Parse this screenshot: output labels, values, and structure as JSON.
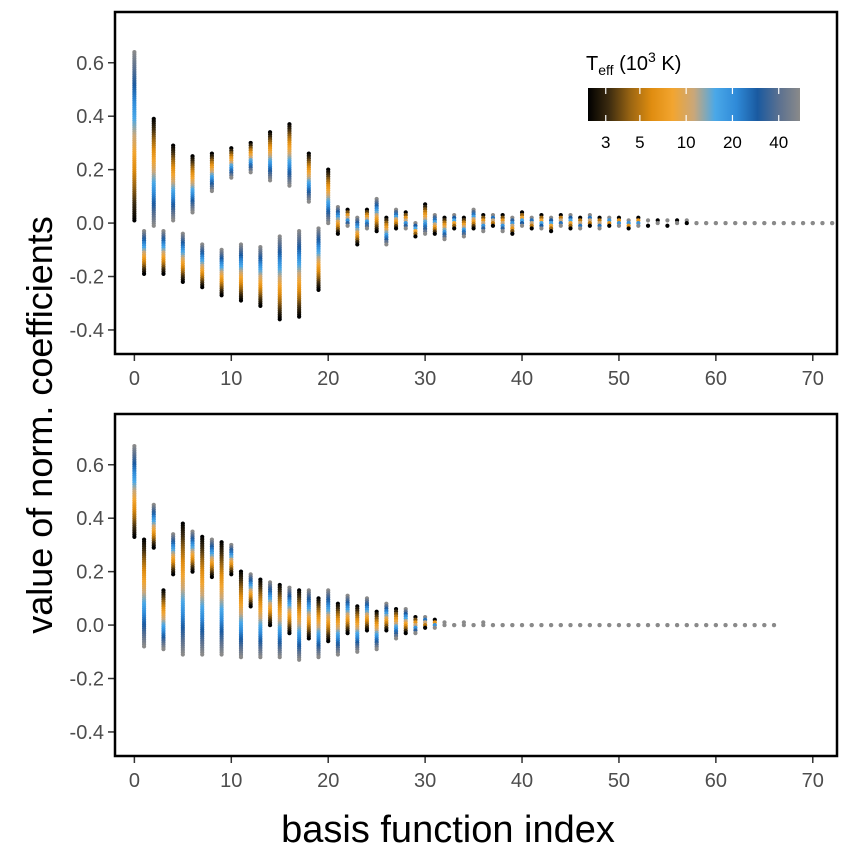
{
  "ylabel": "value of norm. coefficients",
  "xlabel": "basis function index",
  "legend": {
    "title_main": "T",
    "title_sub": "eff",
    "title_rest_a": " (10",
    "title_sup": "3",
    "title_rest_b": " K)",
    "ticks": [
      {
        "label": "3",
        "value": 3
      },
      {
        "label": "5",
        "value": 5
      },
      {
        "label": "10",
        "value": 10
      },
      {
        "label": "20",
        "value": 20
      },
      {
        "label": "40",
        "value": 40
      }
    ],
    "range": [
      2.3,
      55
    ],
    "scale": "log",
    "placement": "top-right",
    "colors": [
      "#000000",
      "#3d2c10",
      "#9a6512",
      "#e08d10",
      "#f2a530",
      "#c9a77a",
      "#4aa8e8",
      "#2f8ad8",
      "#1a5aa0",
      "#5a7090",
      "#8a8a8a"
    ]
  },
  "chart_data": [
    {
      "type": "scatter",
      "panel": "top",
      "xlabel": "basis function index",
      "ylabel": "value of norm. coefficients",
      "xlim": [
        -2,
        72.5
      ],
      "ylim": [
        -0.49,
        0.79
      ],
      "xticks": [
        0,
        10,
        20,
        30,
        40,
        50,
        60,
        70
      ],
      "yticks": [
        -0.4,
        -0.2,
        0.0,
        0.2,
        0.4,
        0.6
      ],
      "ytick_labels": [
        "-0.4",
        "-0.2",
        "0.0",
        "0.2",
        "0.4",
        "0.6"
      ],
      "grid": false,
      "columns": [
        {
          "x": 0,
          "min": 0.01,
          "max": 0.64,
          "order": "cool_high"
        },
        {
          "x": 1,
          "min": -0.19,
          "max": -0.03,
          "order": "cool_high"
        },
        {
          "x": 2,
          "min": -0.01,
          "max": 0.39,
          "order": "cool_low"
        },
        {
          "x": 3,
          "min": -0.19,
          "max": -0.03,
          "order": "cool_high"
        },
        {
          "x": 4,
          "min": 0.01,
          "max": 0.29,
          "order": "cool_low"
        },
        {
          "x": 5,
          "min": -0.22,
          "max": -0.04,
          "order": "cool_high"
        },
        {
          "x": 6,
          "min": 0.04,
          "max": 0.25,
          "order": "cool_low"
        },
        {
          "x": 7,
          "min": -0.24,
          "max": -0.08,
          "order": "cool_high"
        },
        {
          "x": 8,
          "min": 0.12,
          "max": 0.26,
          "order": "cool_low"
        },
        {
          "x": 9,
          "min": -0.27,
          "max": -0.1,
          "order": "cool_high"
        },
        {
          "x": 10,
          "min": 0.17,
          "max": 0.28,
          "order": "cool_low"
        },
        {
          "x": 11,
          "min": -0.29,
          "max": -0.08,
          "order": "cool_high"
        },
        {
          "x": 12,
          "min": 0.19,
          "max": 0.3,
          "order": "cool_low"
        },
        {
          "x": 13,
          "min": -0.31,
          "max": -0.09,
          "order": "cool_high"
        },
        {
          "x": 14,
          "min": 0.16,
          "max": 0.34,
          "order": "cool_low"
        },
        {
          "x": 15,
          "min": -0.36,
          "max": -0.05,
          "order": "cool_high"
        },
        {
          "x": 16,
          "min": 0.14,
          "max": 0.37,
          "order": "cool_low"
        },
        {
          "x": 17,
          "min": -0.35,
          "max": -0.03,
          "order": "cool_high"
        },
        {
          "x": 18,
          "min": 0.08,
          "max": 0.26,
          "order": "cool_low"
        },
        {
          "x": 19,
          "min": -0.25,
          "max": -0.02,
          "order": "cool_high"
        },
        {
          "x": 20,
          "min": 0.0,
          "max": 0.2,
          "order": "cool_low"
        },
        {
          "x": 21,
          "min": -0.04,
          "max": 0.06,
          "order": "cool_high"
        },
        {
          "x": 22,
          "min": -0.01,
          "max": 0.05,
          "order": "cool_low"
        },
        {
          "x": 23,
          "min": -0.08,
          "max": 0.02,
          "order": "cool_high"
        },
        {
          "x": 24,
          "min": -0.02,
          "max": 0.05,
          "order": "cool_low"
        },
        {
          "x": 25,
          "min": -0.03,
          "max": 0.09,
          "order": "cool_high"
        },
        {
          "x": 26,
          "min": -0.08,
          "max": 0.02,
          "order": "cool_low"
        },
        {
          "x": 27,
          "min": -0.02,
          "max": 0.05,
          "order": "cool_high"
        },
        {
          "x": 28,
          "min": -0.02,
          "max": 0.04,
          "order": "cool_low"
        },
        {
          "x": 29,
          "min": -0.05,
          "max": 0.0,
          "order": "cool_high"
        },
        {
          "x": 30,
          "min": -0.04,
          "max": 0.07,
          "order": "cool_low"
        },
        {
          "x": 31,
          "min": -0.04,
          "max": 0.03,
          "order": "cool_high"
        },
        {
          "x": 32,
          "min": -0.06,
          "max": 0.02,
          "order": "cool_low"
        },
        {
          "x": 33,
          "min": -0.02,
          "max": 0.03,
          "order": "cool_high"
        },
        {
          "x": 34,
          "min": -0.05,
          "max": 0.02,
          "order": "cool_low"
        },
        {
          "x": 35,
          "min": -0.02,
          "max": 0.05,
          "order": "cool_high"
        },
        {
          "x": 36,
          "min": -0.03,
          "max": 0.03,
          "order": "cool_low"
        },
        {
          "x": 37,
          "min": -0.01,
          "max": 0.03,
          "order": "cool_high"
        },
        {
          "x": 38,
          "min": -0.03,
          "max": 0.03,
          "order": "cool_low"
        },
        {
          "x": 39,
          "min": -0.04,
          "max": 0.02,
          "order": "cool_high"
        },
        {
          "x": 40,
          "min": -0.01,
          "max": 0.04,
          "order": "cool_low"
        },
        {
          "x": 41,
          "min": -0.02,
          "max": 0.02,
          "order": "cool_high"
        },
        {
          "x": 42,
          "min": -0.02,
          "max": 0.03,
          "order": "cool_low"
        },
        {
          "x": 43,
          "min": -0.03,
          "max": 0.02,
          "order": "cool_high"
        },
        {
          "x": 44,
          "min": -0.01,
          "max": 0.03,
          "order": "cool_low"
        },
        {
          "x": 45,
          "min": -0.02,
          "max": 0.03,
          "order": "cool_high"
        },
        {
          "x": 46,
          "min": -0.02,
          "max": 0.02,
          "order": "cool_low"
        },
        {
          "x": 47,
          "min": -0.01,
          "max": 0.03,
          "order": "cool_high"
        },
        {
          "x": 48,
          "min": -0.02,
          "max": 0.02,
          "order": "cool_low"
        },
        {
          "x": 49,
          "min": -0.01,
          "max": 0.02,
          "order": "cool_high"
        },
        {
          "x": 50,
          "min": -0.01,
          "max": 0.02,
          "order": "cool_low"
        },
        {
          "x": 51,
          "min": -0.02,
          "max": 0.01,
          "order": "cool_high"
        },
        {
          "x": 52,
          "min": -0.01,
          "max": 0.02,
          "order": "cool_low"
        },
        {
          "x": 53,
          "min": -0.01,
          "max": 0.01,
          "order": "cool_high"
        },
        {
          "x": 54,
          "min": 0.0,
          "max": 0.01,
          "order": "cool_low"
        },
        {
          "x": 55,
          "min": -0.01,
          "max": 0.01,
          "order": "cool_high"
        },
        {
          "x": 56,
          "min": 0.0,
          "max": 0.01,
          "order": "cool_low"
        },
        {
          "x": 57,
          "min": 0.0,
          "max": 0.01,
          "order": "cool_high"
        },
        {
          "x": 58,
          "min": 0.0,
          "max": 0.0,
          "order": "flat"
        },
        {
          "x": 59,
          "min": 0.0,
          "max": 0.0,
          "order": "flat"
        },
        {
          "x": 60,
          "min": 0.0,
          "max": 0.0,
          "order": "flat"
        },
        {
          "x": 61,
          "min": 0.0,
          "max": 0.0,
          "order": "flat"
        },
        {
          "x": 62,
          "min": 0.0,
          "max": 0.0,
          "order": "flat"
        },
        {
          "x": 63,
          "min": 0.0,
          "max": 0.0,
          "order": "flat"
        },
        {
          "x": 64,
          "min": 0.0,
          "max": 0.0,
          "order": "flat"
        },
        {
          "x": 65,
          "min": 0.0,
          "max": 0.0,
          "order": "flat"
        },
        {
          "x": 66,
          "min": 0.0,
          "max": 0.0,
          "order": "flat"
        },
        {
          "x": 67,
          "min": 0.0,
          "max": 0.0,
          "order": "flat"
        },
        {
          "x": 68,
          "min": 0.0,
          "max": 0.0,
          "order": "flat"
        },
        {
          "x": 69,
          "min": 0.0,
          "max": 0.0,
          "order": "flat"
        },
        {
          "x": 70,
          "min": 0.0,
          "max": 0.0,
          "order": "flat"
        },
        {
          "x": 71,
          "min": 0.0,
          "max": 0.0,
          "order": "flat"
        },
        {
          "x": 72,
          "min": 0.0,
          "max": 0.0,
          "order": "flat"
        }
      ]
    },
    {
      "type": "scatter",
      "panel": "bottom",
      "xlabel": "basis function index",
      "ylabel": "value of norm. coefficients",
      "xlim": [
        -2,
        72.5
      ],
      "ylim": [
        -0.49,
        0.79
      ],
      "xticks": [
        0,
        10,
        20,
        30,
        40,
        50,
        60,
        70
      ],
      "yticks": [
        -0.4,
        -0.2,
        0.0,
        0.2,
        0.4,
        0.6
      ],
      "ytick_labels": [
        "-0.4",
        "-0.2",
        "0.0",
        "0.2",
        "0.4",
        "0.6"
      ],
      "grid": false,
      "columns": [
        {
          "x": 0,
          "min": 0.33,
          "max": 0.67,
          "order": "cool_high"
        },
        {
          "x": 1,
          "min": -0.08,
          "max": 0.32,
          "order": "cool_low"
        },
        {
          "x": 2,
          "min": 0.29,
          "max": 0.45,
          "order": "cool_high"
        },
        {
          "x": 3,
          "min": -0.09,
          "max": 0.13,
          "order": "cool_low"
        },
        {
          "x": 4,
          "min": 0.19,
          "max": 0.34,
          "order": "cool_high"
        },
        {
          "x": 5,
          "min": -0.11,
          "max": 0.38,
          "order": "cool_low"
        },
        {
          "x": 6,
          "min": 0.2,
          "max": 0.35,
          "order": "cool_high"
        },
        {
          "x": 7,
          "min": -0.11,
          "max": 0.33,
          "order": "cool_low"
        },
        {
          "x": 8,
          "min": 0.18,
          "max": 0.32,
          "order": "cool_high"
        },
        {
          "x": 9,
          "min": -0.11,
          "max": 0.31,
          "order": "cool_low"
        },
        {
          "x": 10,
          "min": 0.19,
          "max": 0.3,
          "order": "cool_high"
        },
        {
          "x": 11,
          "min": -0.12,
          "max": 0.2,
          "order": "cool_low"
        },
        {
          "x": 12,
          "min": 0.07,
          "max": 0.19,
          "order": "cool_high"
        },
        {
          "x": 13,
          "min": -0.12,
          "max": 0.17,
          "order": "cool_low"
        },
        {
          "x": 14,
          "min": 0.0,
          "max": 0.16,
          "order": "cool_high"
        },
        {
          "x": 15,
          "min": -0.12,
          "max": 0.15,
          "order": "cool_low"
        },
        {
          "x": 16,
          "min": -0.03,
          "max": 0.14,
          "order": "cool_high"
        },
        {
          "x": 17,
          "min": -0.13,
          "max": 0.13,
          "order": "cool_low"
        },
        {
          "x": 18,
          "min": -0.05,
          "max": 0.13,
          "order": "cool_high"
        },
        {
          "x": 19,
          "min": -0.12,
          "max": 0.1,
          "order": "cool_low"
        },
        {
          "x": 20,
          "min": -0.06,
          "max": 0.13,
          "order": "cool_high"
        },
        {
          "x": 21,
          "min": -0.11,
          "max": 0.08,
          "order": "cool_low"
        },
        {
          "x": 22,
          "min": -0.03,
          "max": 0.11,
          "order": "cool_high"
        },
        {
          "x": 23,
          "min": -0.1,
          "max": 0.07,
          "order": "cool_low"
        },
        {
          "x": 24,
          "min": -0.02,
          "max": 0.1,
          "order": "cool_high"
        },
        {
          "x": 25,
          "min": -0.09,
          "max": 0.05,
          "order": "cool_low"
        },
        {
          "x": 26,
          "min": -0.02,
          "max": 0.08,
          "order": "cool_high"
        },
        {
          "x": 27,
          "min": -0.05,
          "max": 0.06,
          "order": "cool_low"
        },
        {
          "x": 28,
          "min": -0.03,
          "max": 0.06,
          "order": "cool_high"
        },
        {
          "x": 29,
          "min": -0.03,
          "max": 0.03,
          "order": "cool_low"
        },
        {
          "x": 30,
          "min": -0.01,
          "max": 0.03,
          "order": "cool_high"
        },
        {
          "x": 31,
          "min": -0.01,
          "max": 0.02,
          "order": "cool_low"
        },
        {
          "x": 32,
          "min": 0.0,
          "max": 0.01,
          "order": "flat"
        },
        {
          "x": 33,
          "min": 0.0,
          "max": 0.0,
          "order": "flat"
        },
        {
          "x": 34,
          "min": 0.0,
          "max": 0.01,
          "order": "flat"
        },
        {
          "x": 35,
          "min": 0.0,
          "max": 0.0,
          "order": "flat"
        },
        {
          "x": 36,
          "min": 0.0,
          "max": 0.01,
          "order": "flat"
        },
        {
          "x": 37,
          "min": 0.0,
          "max": 0.0,
          "order": "flat"
        },
        {
          "x": 38,
          "min": 0.0,
          "max": 0.0,
          "order": "flat"
        },
        {
          "x": 39,
          "min": 0.0,
          "max": 0.0,
          "order": "flat"
        },
        {
          "x": 40,
          "min": 0.0,
          "max": 0.0,
          "order": "flat"
        },
        {
          "x": 41,
          "min": 0.0,
          "max": 0.0,
          "order": "flat"
        },
        {
          "x": 42,
          "min": 0.0,
          "max": 0.0,
          "order": "flat"
        },
        {
          "x": 43,
          "min": 0.0,
          "max": 0.0,
          "order": "flat"
        },
        {
          "x": 44,
          "min": 0.0,
          "max": 0.0,
          "order": "flat"
        },
        {
          "x": 45,
          "min": 0.0,
          "max": 0.0,
          "order": "flat"
        },
        {
          "x": 46,
          "min": 0.0,
          "max": 0.0,
          "order": "flat"
        },
        {
          "x": 47,
          "min": 0.0,
          "max": 0.0,
          "order": "flat"
        },
        {
          "x": 48,
          "min": 0.0,
          "max": 0.0,
          "order": "flat"
        },
        {
          "x": 49,
          "min": 0.0,
          "max": 0.0,
          "order": "flat"
        },
        {
          "x": 50,
          "min": 0.0,
          "max": 0.0,
          "order": "flat"
        },
        {
          "x": 51,
          "min": 0.0,
          "max": 0.0,
          "order": "flat"
        },
        {
          "x": 52,
          "min": 0.0,
          "max": 0.0,
          "order": "flat"
        },
        {
          "x": 53,
          "min": 0.0,
          "max": 0.0,
          "order": "flat"
        },
        {
          "x": 54,
          "min": 0.0,
          "max": 0.0,
          "order": "flat"
        },
        {
          "x": 55,
          "min": 0.0,
          "max": 0.0,
          "order": "flat"
        },
        {
          "x": 56,
          "min": 0.0,
          "max": 0.0,
          "order": "flat"
        },
        {
          "x": 57,
          "min": 0.0,
          "max": 0.0,
          "order": "flat"
        },
        {
          "x": 58,
          "min": 0.0,
          "max": 0.0,
          "order": "flat"
        },
        {
          "x": 59,
          "min": 0.0,
          "max": 0.0,
          "order": "flat"
        },
        {
          "x": 60,
          "min": 0.0,
          "max": 0.0,
          "order": "flat"
        },
        {
          "x": 61,
          "min": 0.0,
          "max": 0.0,
          "order": "flat"
        },
        {
          "x": 62,
          "min": 0.0,
          "max": 0.0,
          "order": "flat"
        },
        {
          "x": 63,
          "min": 0.0,
          "max": 0.0,
          "order": "flat"
        },
        {
          "x": 64,
          "min": 0.0,
          "max": 0.0,
          "order": "flat"
        },
        {
          "x": 65,
          "min": 0.0,
          "max": 0.0,
          "order": "flat"
        },
        {
          "x": 66,
          "min": 0.0,
          "max": 0.0,
          "order": "flat"
        }
      ]
    }
  ]
}
